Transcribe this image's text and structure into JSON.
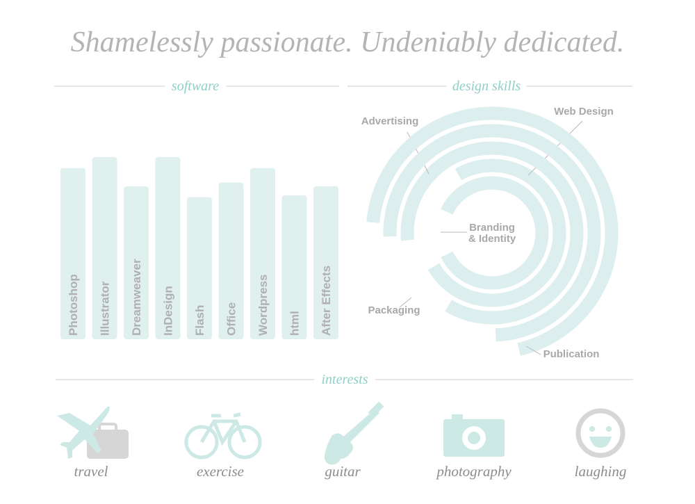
{
  "title": "Shamelessly passionate. Undeniably dedicated.",
  "chart_data": [
    {
      "type": "bar",
      "title": "software",
      "categories": [
        "Photoshop",
        "Illustrator",
        "Dreamweaver",
        "InDesign",
        "Flash",
        "Office",
        "Wordpress",
        "html",
        "After Effects"
      ],
      "values": [
        94,
        100,
        84,
        100,
        78,
        86,
        94,
        79,
        84
      ],
      "color": "#dff0ee"
    },
    {
      "type": "radial-bar",
      "title": "design skills",
      "categories": [
        "Branding & Identity",
        "Web Design",
        "Advertising",
        "Packaging",
        "Publication"
      ],
      "values": [
        86,
        75,
        85,
        75,
        70
      ],
      "color": "#dceeed"
    }
  ],
  "interests": {
    "heading": "interests",
    "items": [
      "travel",
      "exercise",
      "guitar",
      "photography",
      "laughing"
    ]
  }
}
